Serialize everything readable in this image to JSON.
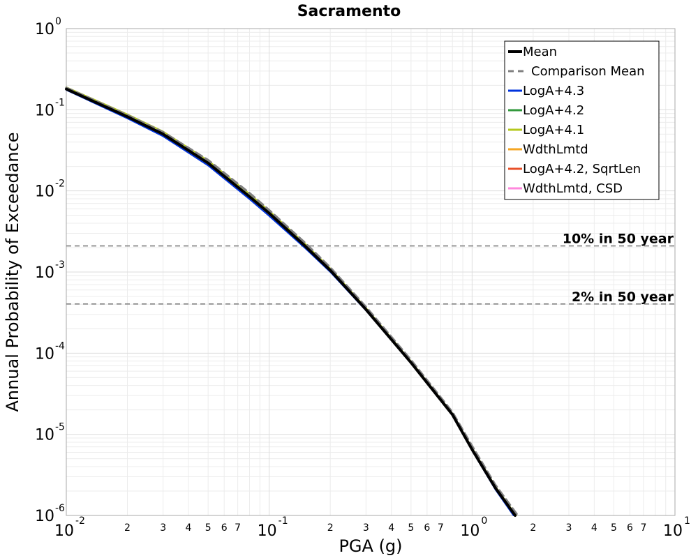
{
  "chart_data": {
    "type": "line",
    "title": "Sacramento",
    "xlabel": "PGA (g)",
    "ylabel": "Annual Probability of Exceedance",
    "x_scale": "log",
    "y_scale": "log",
    "xlim": [
      0.01,
      10
    ],
    "ylim": [
      1e-06,
      1
    ],
    "grid": true,
    "legend_position": "top-right",
    "x_major_ticks": [
      {
        "base": "10",
        "exp": "-2"
      },
      {
        "base": "10",
        "exp": "-1"
      },
      {
        "base": "10",
        "exp": "0"
      },
      {
        "base": "10",
        "exp": "1"
      }
    ],
    "x_minor_labels": [
      "2",
      "3",
      "4",
      "5",
      "6",
      "7"
    ],
    "y_major_ticks": [
      {
        "base": "10",
        "exp": "0"
      },
      {
        "base": "10",
        "exp": "-1"
      },
      {
        "base": "10",
        "exp": "-2"
      },
      {
        "base": "10",
        "exp": "-3"
      },
      {
        "base": "10",
        "exp": "-4"
      },
      {
        "base": "10",
        "exp": "-5"
      },
      {
        "base": "10",
        "exp": "-6"
      }
    ],
    "reference_lines": [
      {
        "label": "10% in 50 year",
        "y": 0.0021,
        "color": "#808080"
      },
      {
        "label": "2% in 50 year",
        "y": 0.000404,
        "color": "#808080"
      }
    ],
    "series": [
      {
        "name": "Mean",
        "color": "#000000",
        "style": "solid",
        "width": 4,
        "x": [
          0.01,
          0.02,
          0.03,
          0.05,
          0.08,
          0.1,
          0.15,
          0.2,
          0.3,
          0.5,
          0.8,
          1.0,
          1.3,
          1.63
        ],
        "y": [
          0.18,
          0.082,
          0.05,
          0.022,
          0.0085,
          0.0053,
          0.0021,
          0.00105,
          0.000345,
          7.65e-05,
          1.75e-05,
          6.5e-06,
          2.2e-06,
          1e-06
        ]
      },
      {
        "name": "Comparison Mean",
        "color": "#808080",
        "style": "dashed",
        "width": 3,
        "x": [
          0.01,
          0.02,
          0.03,
          0.05,
          0.08,
          0.1,
          0.15,
          0.2,
          0.3,
          0.5,
          0.8,
          1.0,
          1.3,
          1.68
        ],
        "y": [
          0.187,
          0.086,
          0.053,
          0.024,
          0.0094,
          0.0058,
          0.0023,
          0.00114,
          0.000372,
          8.25e-05,
          1.88e-05,
          7.2e-06,
          2.4e-06,
          1e-06
        ]
      },
      {
        "name": "LogA+4.3",
        "color": "#0033dd",
        "style": "solid",
        "width": 2,
        "x": [
          0.01,
          0.02,
          0.03,
          0.05,
          0.08,
          0.1,
          0.15,
          0.2,
          0.3,
          0.5,
          0.8,
          1.0,
          1.3,
          1.6
        ],
        "y": [
          0.175,
          0.078,
          0.047,
          0.0205,
          0.0079,
          0.0049,
          0.00198,
          0.001,
          0.000335,
          7.5e-05,
          1.72e-05,
          6.3e-06,
          2.1e-06,
          1e-06
        ]
      },
      {
        "name": "LogA+4.2",
        "color": "#33993d",
        "style": "solid",
        "width": 2,
        "x": [
          0.01,
          0.02,
          0.03,
          0.05,
          0.08,
          0.1,
          0.15,
          0.2,
          0.3,
          0.5,
          0.8,
          1.0,
          1.3,
          1.63
        ],
        "y": [
          0.182,
          0.084,
          0.051,
          0.0225,
          0.0087,
          0.0054,
          0.00213,
          0.00106,
          0.000348,
          7.72e-05,
          1.77e-05,
          6.6e-06,
          2.2e-06,
          1e-06
        ]
      },
      {
        "name": "LogA+4.1",
        "color": "#b5c81e",
        "style": "solid",
        "width": 2,
        "x": [
          0.01,
          0.02,
          0.03,
          0.05,
          0.08,
          0.1,
          0.15,
          0.2,
          0.3,
          0.5,
          0.8,
          1.0,
          1.3,
          1.65
        ],
        "y": [
          0.19,
          0.088,
          0.054,
          0.0237,
          0.0092,
          0.0057,
          0.00225,
          0.00111,
          0.000362,
          7.95e-05,
          1.81e-05,
          6.8e-06,
          2.3e-06,
          1e-06
        ]
      },
      {
        "name": "WdthLmtd",
        "color": "#f5a623",
        "style": "solid",
        "width": 2,
        "x": [],
        "y": []
      },
      {
        "name": "LogA+4.2, SqrtLen",
        "color": "#e8502a",
        "style": "solid",
        "width": 2,
        "x": [],
        "y": []
      },
      {
        "name": "WdthLmtd, CSD",
        "color": "#ff88dd",
        "style": "solid",
        "width": 2,
        "x": [],
        "y": []
      }
    ]
  }
}
